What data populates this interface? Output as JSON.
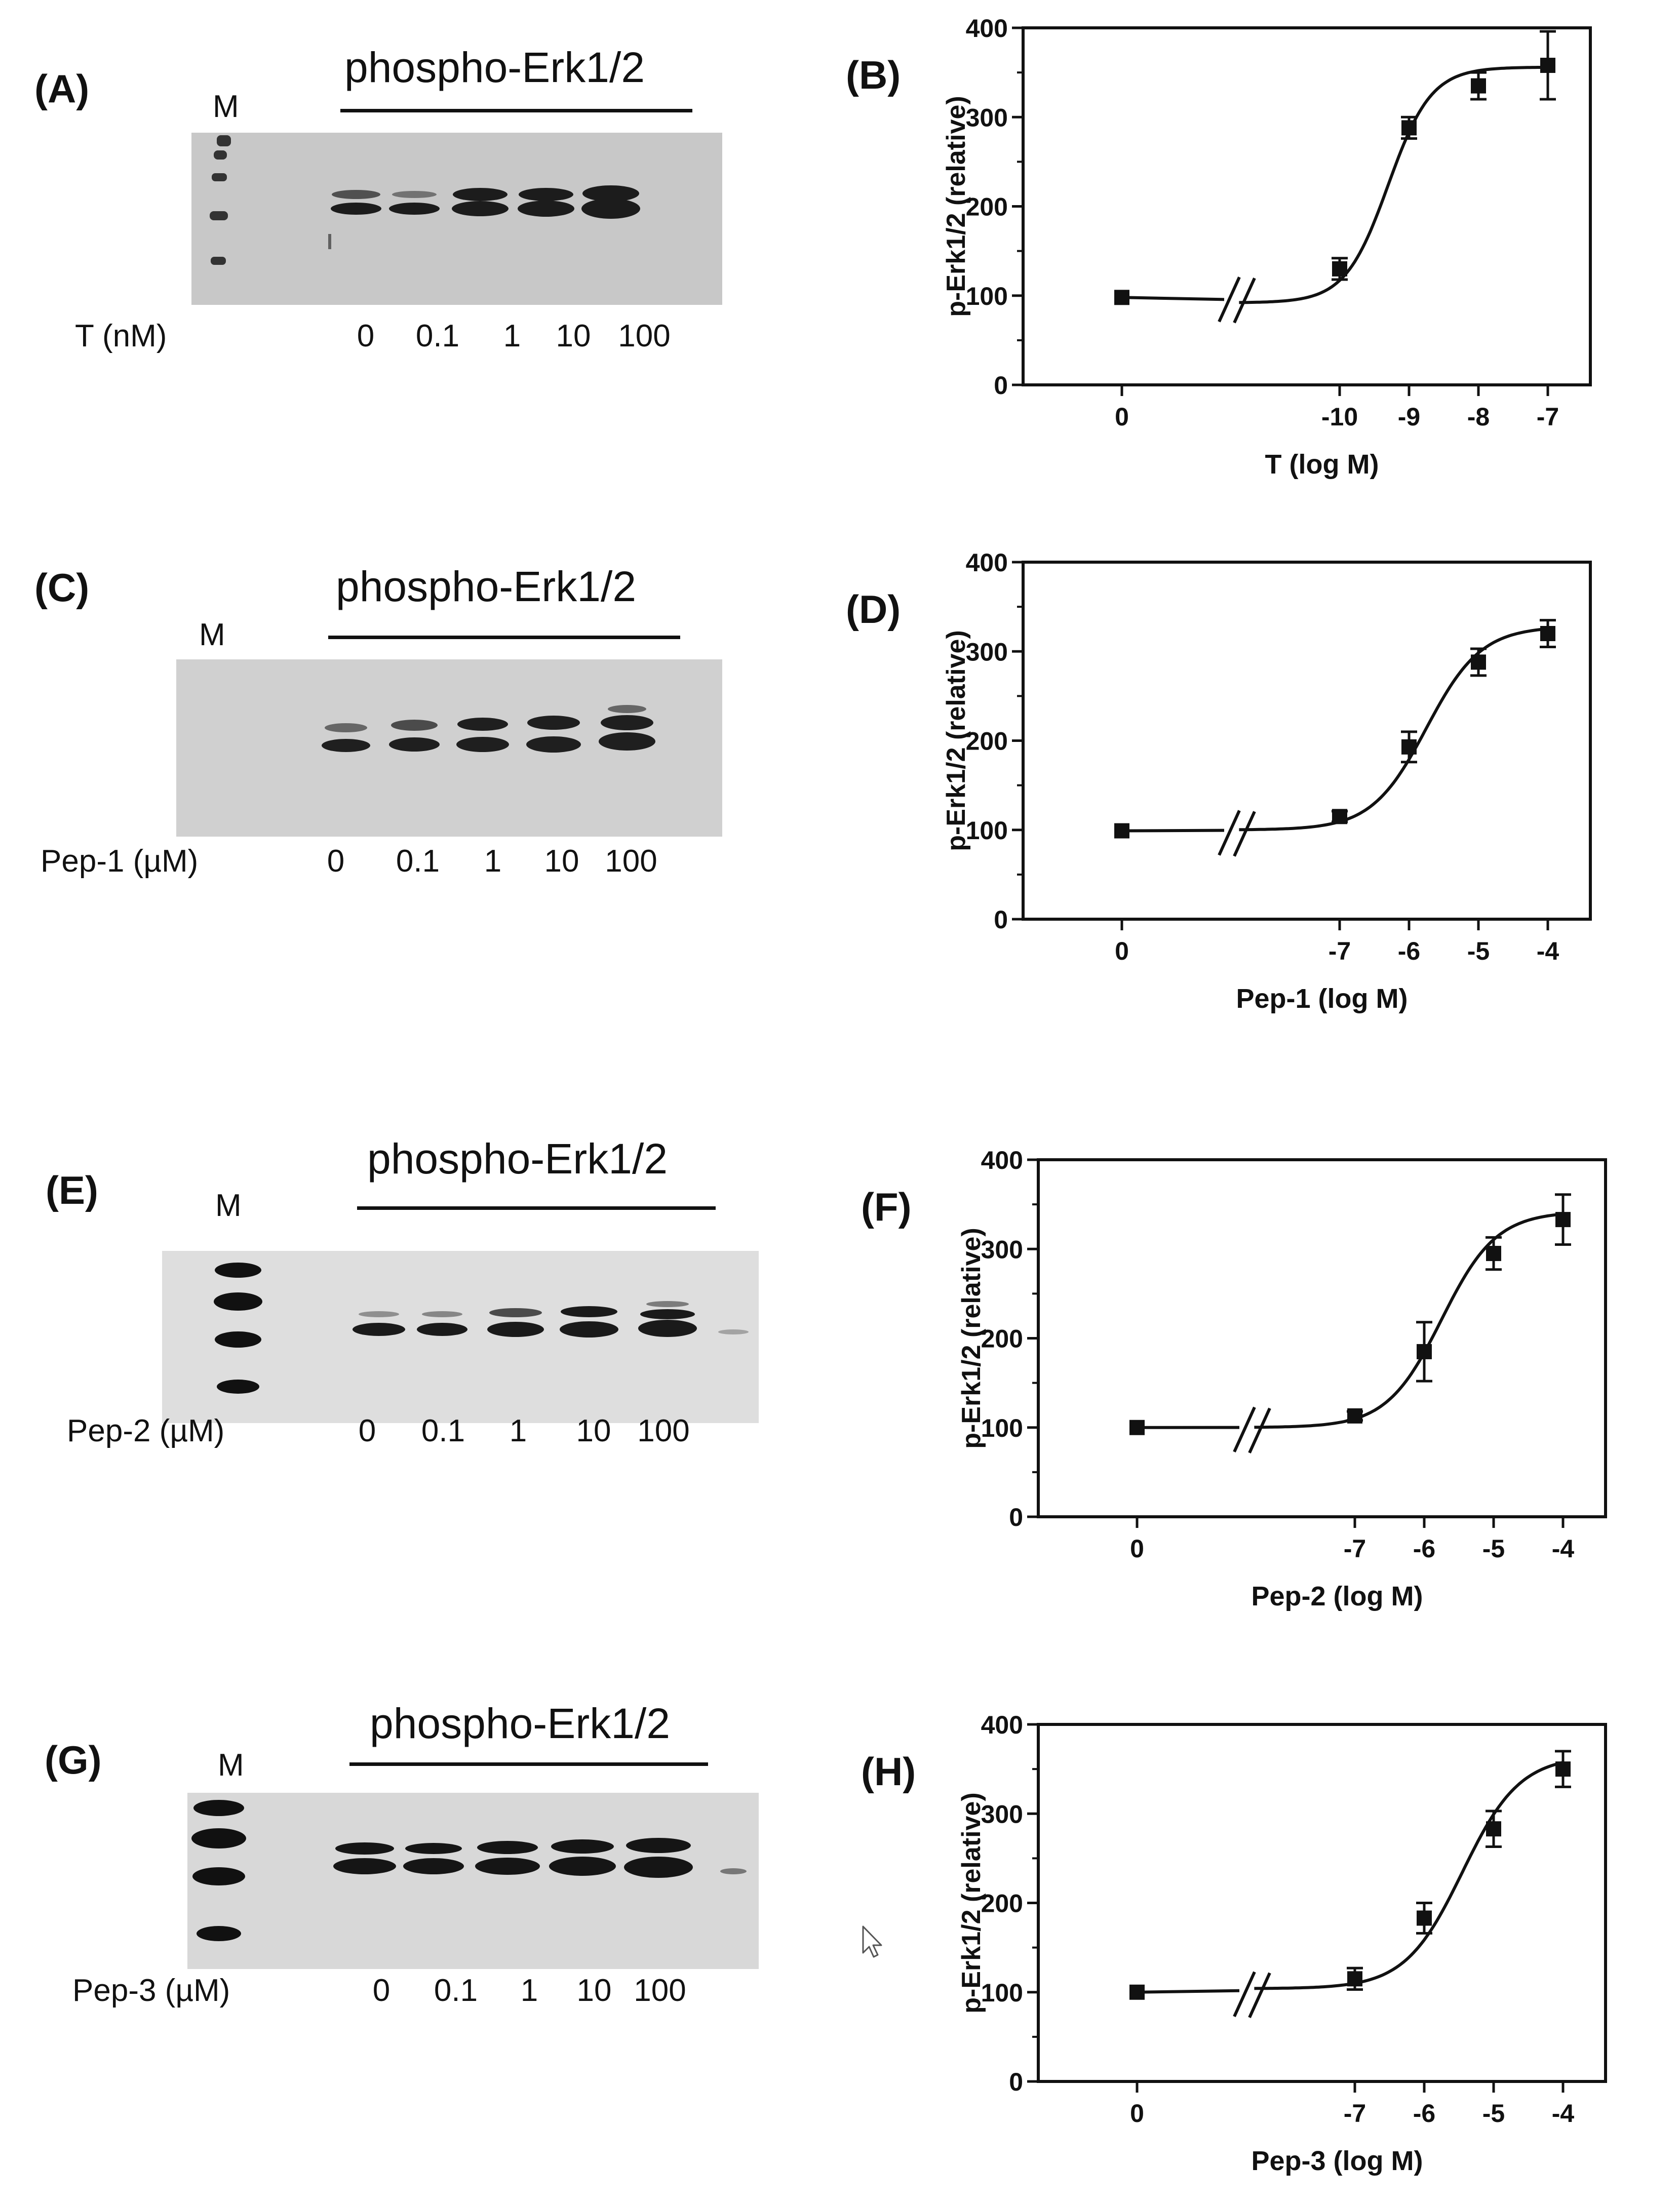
{
  "panels": [
    {
      "letter": "(A)",
      "blot_title": "phospho-Erk1/2",
      "marker": "M",
      "dose_label": "T (nM)",
      "lanes": [
        "0",
        "0.1",
        "1",
        "10",
        "100"
      ]
    },
    {
      "letter": "(C)",
      "blot_title": "phospho-Erk1/2",
      "marker": "M",
      "dose_label": "Pep-1 (µM)",
      "lanes": [
        "0",
        "0.1",
        "1",
        "10",
        "100"
      ]
    },
    {
      "letter": "(E)",
      "blot_title": "phospho-Erk1/2",
      "marker": "M",
      "dose_label": "Pep-2 (µM)",
      "lanes": [
        "0",
        "0.1",
        "1",
        "10",
        "100"
      ]
    },
    {
      "letter": "(G)",
      "blot_title": "phospho-Erk1/2",
      "marker": "M",
      "dose_label": "Pep-3 (µM)",
      "lanes": [
        "0",
        "0.1",
        "1",
        "10",
        "100"
      ]
    }
  ],
  "chart_data": [
    {
      "letter": "(B)",
      "type": "scatter",
      "ylabel": "p-Erk1/2 (relative)",
      "xlabel": "T (log M)",
      "ylim": [
        0,
        400
      ],
      "yticks": [
        0,
        100,
        200,
        300,
        400
      ],
      "xticks": [
        "0",
        "-10",
        "-9",
        "-8",
        "-7"
      ],
      "axis_break": true,
      "control": {
        "x": "0",
        "y": 98,
        "err": 0
      },
      "points": [
        {
          "x": -10,
          "y": 130,
          "err": 12
        },
        {
          "x": -9,
          "y": 288,
          "err": 12
        },
        {
          "x": -8,
          "y": 335,
          "err": 15
        },
        {
          "x": -7,
          "y": 358,
          "err": 38
        }
      ],
      "fit": {
        "bottom": 92,
        "top": 356,
        "log_ec50": -9.3,
        "hill": 1.4
      }
    },
    {
      "letter": "(D)",
      "type": "scatter",
      "ylabel": "p-Erk1/2 (relative)",
      "xlabel": "Pep-1 (log M)",
      "ylim": [
        0,
        400
      ],
      "yticks": [
        0,
        100,
        200,
        300,
        400
      ],
      "xticks": [
        "0",
        "-7",
        "-6",
        "-5",
        "-4"
      ],
      "axis_break": true,
      "control": {
        "x": "0",
        "y": 99,
        "err": 0
      },
      "points": [
        {
          "x": -7,
          "y": 115,
          "err": 6
        },
        {
          "x": -6,
          "y": 193,
          "err": 17
        },
        {
          "x": -5,
          "y": 288,
          "err": 15
        },
        {
          "x": -4,
          "y": 320,
          "err": 15
        }
      ],
      "fit": {
        "bottom": 100,
        "top": 328,
        "log_ec50": -5.75,
        "hill": 1.1
      }
    },
    {
      "letter": "(F)",
      "type": "scatter",
      "ylabel": "p-Erk1/2 (relative)",
      "xlabel": "Pep-2 (log M)",
      "ylim": [
        0,
        400
      ],
      "yticks": [
        0,
        100,
        200,
        300,
        400
      ],
      "xticks": [
        "0",
        "-7",
        "-6",
        "-5",
        "-4"
      ],
      "axis_break": true,
      "control": {
        "x": "0",
        "y": 100,
        "err": 0
      },
      "points": [
        {
          "x": -7,
          "y": 113,
          "err": 5
        },
        {
          "x": -6,
          "y": 185,
          "err": 33
        },
        {
          "x": -5,
          "y": 295,
          "err": 18
        },
        {
          "x": -4,
          "y": 333,
          "err": 28
        }
      ],
      "fit": {
        "bottom": 100,
        "top": 342,
        "log_ec50": -5.75,
        "hill": 1.1
      }
    },
    {
      "letter": "(H)",
      "type": "scatter",
      "ylabel": "p-Erk1/2 (relative)",
      "xlabel": "Pep-3 (log M)",
      "ylim": [
        0,
        400
      ],
      "yticks": [
        0,
        100,
        200,
        300,
        400
      ],
      "xticks": [
        "0",
        "-7",
        "-6",
        "-5",
        "-4"
      ],
      "axis_break": true,
      "control": {
        "x": "0",
        "y": 100,
        "err": 0
      },
      "points": [
        {
          "x": -7,
          "y": 115,
          "err": 12
        },
        {
          "x": -6,
          "y": 183,
          "err": 17
        },
        {
          "x": -5,
          "y": 283,
          "err": 20
        },
        {
          "x": -4,
          "y": 350,
          "err": 20
        }
      ],
      "fit": {
        "bottom": 104,
        "top": 365,
        "log_ec50": -5.45,
        "hill": 1.05
      }
    }
  ]
}
